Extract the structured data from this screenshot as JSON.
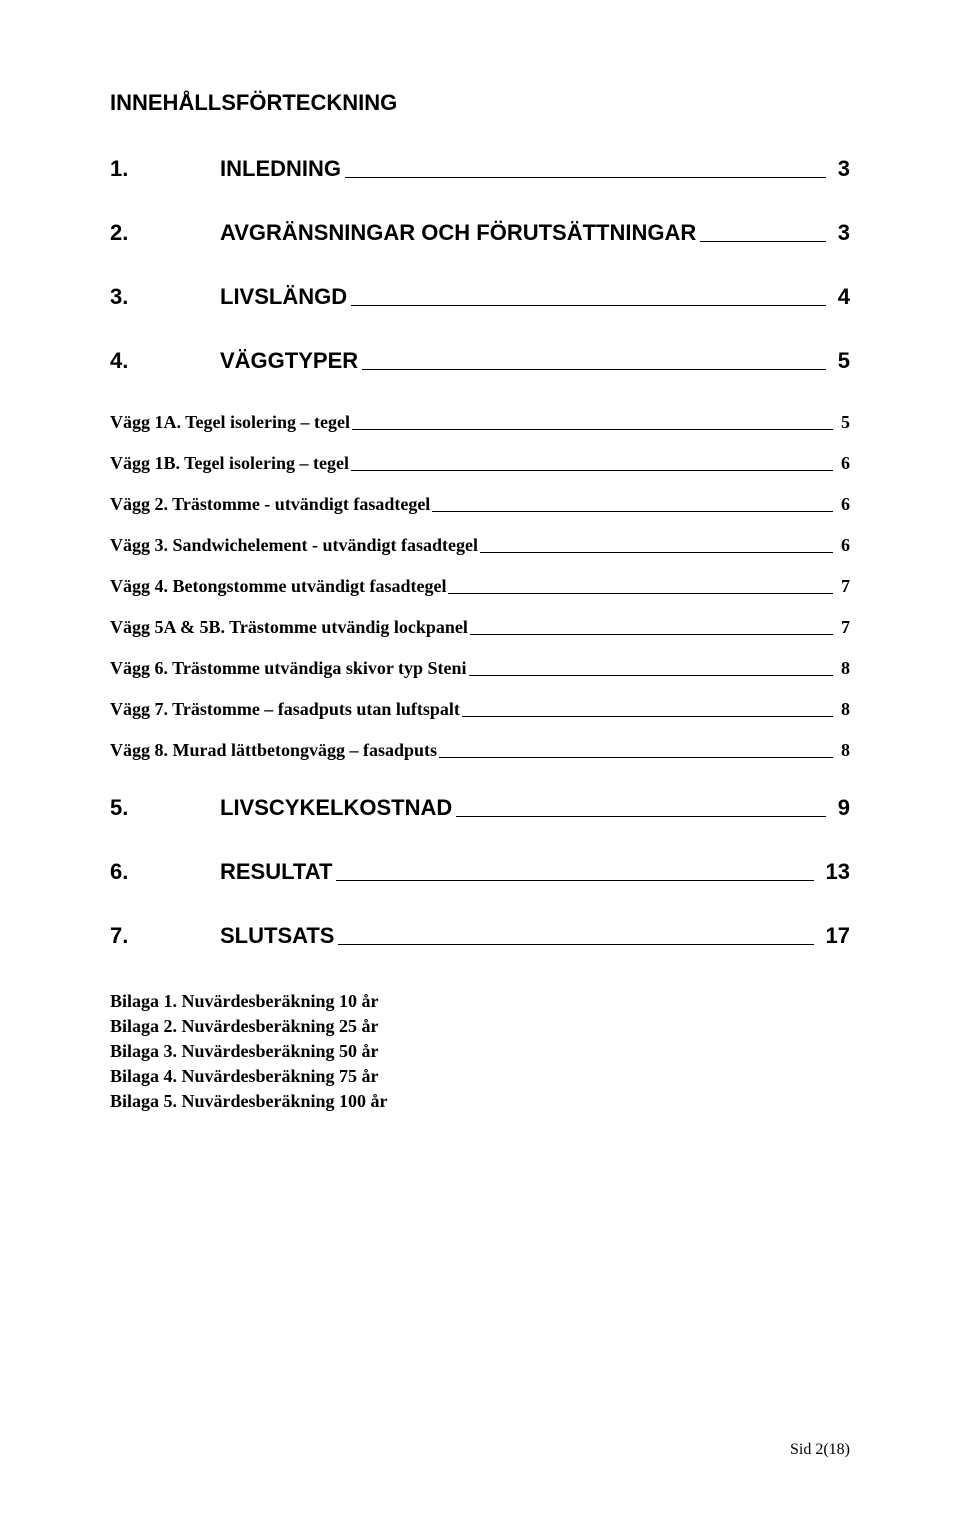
{
  "title": "INNEHÅLLSFÖRTECKNING",
  "toc": [
    {
      "level": 1,
      "num": "1.",
      "label": "INLEDNING",
      "page": "3"
    },
    {
      "level": 1,
      "num": "2.",
      "label": "AVGRÄNSNINGAR OCH FÖRUTSÄTTNINGAR",
      "page": "3"
    },
    {
      "level": 1,
      "num": "3.",
      "label": "LIVSLÄNGD",
      "page": "4"
    },
    {
      "level": 1,
      "num": "4.",
      "label": "VÄGGTYPER",
      "page": "5"
    },
    {
      "level": 2,
      "label": "Vägg 1A. Tegel isolering – tegel",
      "page": "5"
    },
    {
      "level": 2,
      "label": "Vägg 1B. Tegel isolering – tegel",
      "page": "6"
    },
    {
      "level": 2,
      "label": "Vägg 2. Trästomme - utvändigt fasadtegel",
      "page": "6"
    },
    {
      "level": 2,
      "label": "Vägg 3. Sandwichelement - utvändigt fasadtegel",
      "page": "6"
    },
    {
      "level": 2,
      "label": "Vägg 4. Betongstomme utvändigt fasadtegel",
      "page": "7"
    },
    {
      "level": 2,
      "label": "Vägg 5A & 5B. Trästomme utvändig lockpanel",
      "page": "7"
    },
    {
      "level": 2,
      "label": "Vägg 6. Trästomme utvändiga skivor typ Steni",
      "page": "8"
    },
    {
      "level": 2,
      "label": "Vägg 7. Trästomme – fasadputs utan luftspalt",
      "page": "8"
    },
    {
      "level": 2,
      "label": "Vägg 8. Murad lättbetongvägg – fasadputs",
      "page": "8"
    },
    {
      "level": 1,
      "num": "5.",
      "label": "LIVSCYKELKOSTNAD",
      "page": "9"
    },
    {
      "level": 1,
      "num": "6.",
      "label": "RESULTAT",
      "page": "13"
    },
    {
      "level": 1,
      "num": "7.",
      "label": "SLUTSATS",
      "page": "17"
    }
  ],
  "appendix": [
    "Bilaga 1. Nuvärdesberäkning 10 år",
    "Bilaga 2. Nuvärdesberäkning 25 år",
    "Bilaga 3. Nuvärdesberäkning 50 år",
    "Bilaga 4. Nuvärdesberäkning 75 år",
    "Bilaga 5. Nuvärdesberäkning 100 år"
  ],
  "footer": "Sid 2(18)",
  "colors": {
    "text": "#000000",
    "background": "#ffffff",
    "rule": "#000000"
  },
  "typography": {
    "heading_font": "Arial",
    "heading_size_pt": 16,
    "body_font": "Times New Roman",
    "sub_size_pt": 13
  }
}
